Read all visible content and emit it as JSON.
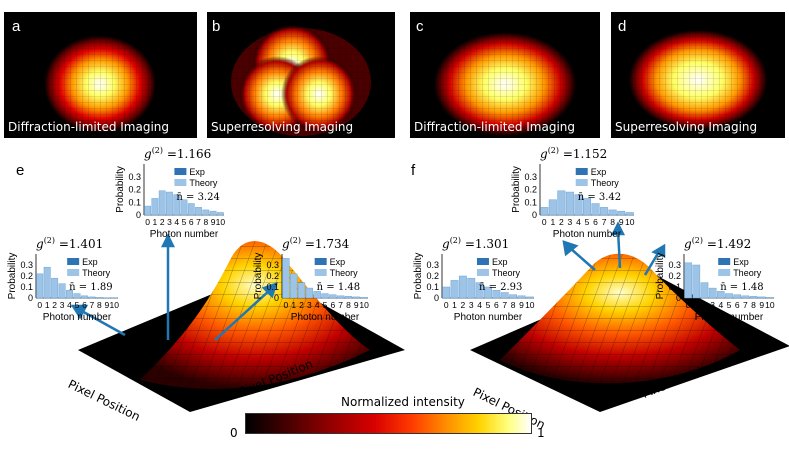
{
  "panels": {
    "a": {
      "letter": "a",
      "caption": "Diffraction-limited Imaging"
    },
    "b": {
      "letter": "b",
      "caption": "Superresolving Imaging"
    },
    "c": {
      "letter": "c",
      "caption": "Diffraction-limited Imaging"
    },
    "d": {
      "letter": "d",
      "caption": "Superresolving Imaging"
    },
    "e": {
      "letter": "e"
    },
    "f": {
      "letter": "f"
    }
  },
  "histograms": [
    {
      "id": "e_left",
      "g2": "=1.401",
      "nbar": "n̄ = 1.89",
      "legend_exp": "Exp",
      "legend_theory": "Theory",
      "ylabel": "Probability",
      "xlabel": "Photon number",
      "yticks": [
        "0.3",
        "0.2",
        "0.1",
        "0"
      ],
      "xticks": [
        "0",
        "1",
        "2",
        "3",
        "4",
        "5",
        "6",
        "7",
        "8",
        "9",
        "10"
      ],
      "values": [
        0.22,
        0.28,
        0.18,
        0.13,
        0.07,
        0.04,
        0.02,
        0.01,
        0.005,
        0.003,
        0.001
      ]
    },
    {
      "id": "e_top",
      "g2": "=1.166",
      "nbar": "n̄ = 3.24",
      "legend_exp": "Exp",
      "legend_theory": "Theory",
      "ylabel": "Probability",
      "xlabel": "Photon number",
      "yticks": [
        "0.3",
        "0.2",
        "0.1",
        "0"
      ],
      "xticks": [
        "0",
        "1",
        "2",
        "3",
        "4",
        "5",
        "6",
        "7",
        "8",
        "9",
        "10"
      ],
      "values": [
        0.07,
        0.13,
        0.19,
        0.18,
        0.16,
        0.12,
        0.09,
        0.06,
        0.04,
        0.03,
        0.02
      ]
    },
    {
      "id": "e_right",
      "g2": "=1.734",
      "nbar": "n̄ = 1.48",
      "legend_exp": "Exp",
      "legend_theory": "Theory",
      "ylabel": "Probability",
      "xlabel": "Photon number",
      "yticks": [
        "0.3",
        "0.2",
        "0.1",
        "0"
      ],
      "xticks": [
        "0",
        "1",
        "2",
        "3",
        "4",
        "5",
        "6",
        "7",
        "8",
        "9",
        "10"
      ],
      "values": [
        0.36,
        0.22,
        0.14,
        0.09,
        0.06,
        0.04,
        0.03,
        0.02,
        0.015,
        0.01,
        0.005
      ]
    },
    {
      "id": "f_left",
      "g2": "=1.301",
      "nbar": "n̄ = 2.93",
      "legend_exp": "Exp",
      "legend_theory": "Theory",
      "ylabel": "Probability",
      "xlabel": "Photon number",
      "yticks": [
        "0.3",
        "0.2",
        "0.1",
        "0"
      ],
      "xticks": [
        "0",
        "1",
        "2",
        "3",
        "4",
        "5",
        "6",
        "7",
        "8",
        "9",
        "10"
      ],
      "values": [
        0.1,
        0.16,
        0.2,
        0.18,
        0.14,
        0.1,
        0.07,
        0.05,
        0.03,
        0.02,
        0.01
      ]
    },
    {
      "id": "f_top",
      "g2": "=1.152",
      "nbar": "n̄ = 3.42",
      "legend_exp": "Exp",
      "legend_theory": "Theory",
      "ylabel": "Probability",
      "xlabel": "Photon number",
      "yticks": [
        "0.3",
        "0.2",
        "0.1",
        "0"
      ],
      "xticks": [
        "0",
        "1",
        "2",
        "3",
        "4",
        "5",
        "6",
        "7",
        "8",
        "9",
        "10"
      ],
      "values": [
        0.06,
        0.12,
        0.19,
        0.18,
        0.16,
        0.13,
        0.09,
        0.06,
        0.04,
        0.03,
        0.02
      ]
    },
    {
      "id": "f_right",
      "g2": "=1.492",
      "nbar": "n̄ = 1.48",
      "legend_exp": "Exp",
      "legend_theory": "Theory",
      "ylabel": "Probability",
      "xlabel": "Photon number",
      "yticks": [
        "0.3",
        "0.2",
        "0.1",
        "0"
      ],
      "xticks": [
        "0",
        "1",
        "2",
        "3",
        "4",
        "5",
        "6",
        "7",
        "8",
        "9",
        "10"
      ],
      "values": [
        0.32,
        0.3,
        0.14,
        0.09,
        0.06,
        0.04,
        0.03,
        0.02,
        0.015,
        0.01,
        0.005
      ]
    }
  ],
  "g2_symbol": "g",
  "g2_sup": "(2)",
  "surfaces": {
    "e": {
      "axis1": "Pixel Position",
      "axis2": "Pixel Position"
    },
    "f": {
      "axis1": "Pixel Position",
      "axis2": "Pixel Position"
    }
  },
  "colorbar": {
    "title": "Normalized intensity",
    "min_label": "0",
    "max_label": "1"
  },
  "colors": {
    "exp": "#2e74b5",
    "theory": "#9dc3e6",
    "arrow": "#1f77b4"
  }
}
